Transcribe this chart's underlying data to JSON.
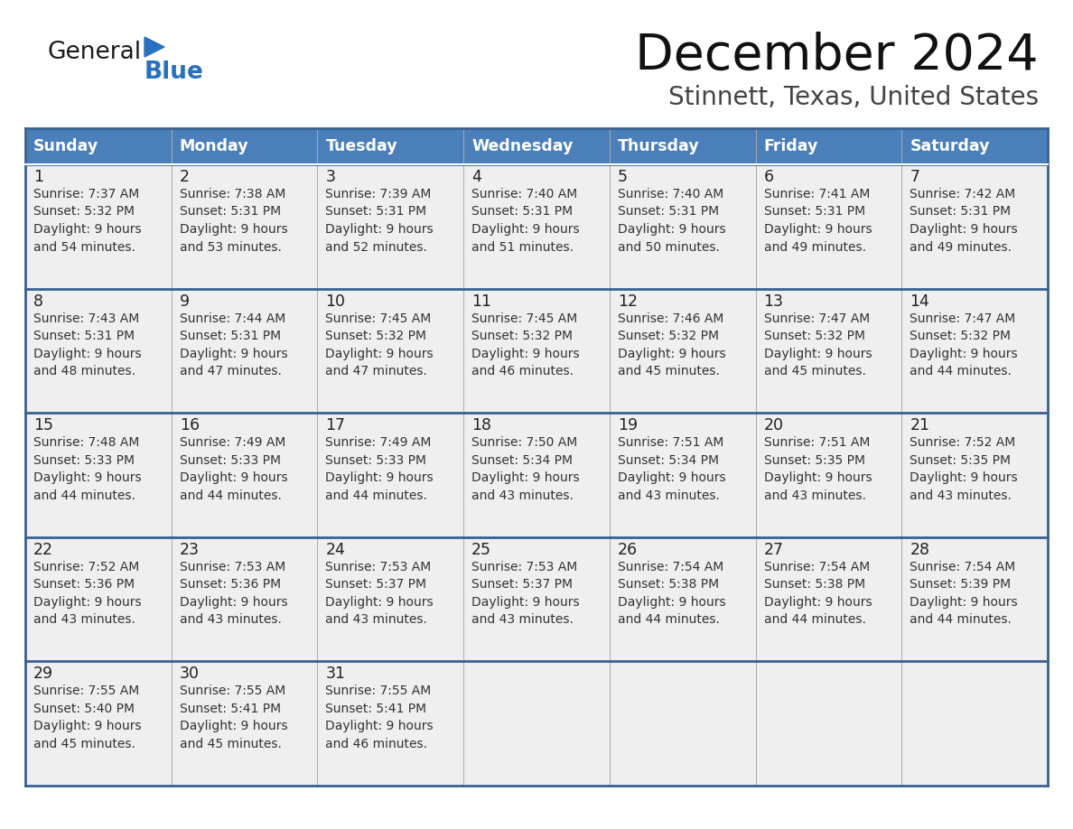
{
  "title": "December 2024",
  "subtitle": "Stinnett, Texas, United States",
  "header_bg": "#4a7fba",
  "header_text_color": "#ffffff",
  "days_of_week": [
    "Sunday",
    "Monday",
    "Tuesday",
    "Wednesday",
    "Thursday",
    "Friday",
    "Saturday"
  ],
  "row_bg": "#efefef",
  "cell_text_color": "#333333",
  "day_num_color": "#222222",
  "border_color": "#3a6090",
  "separator_color": "#3a6090",
  "calendar_data": [
    [
      {
        "day": 1,
        "sunrise": "7:37 AM",
        "sunset": "5:32 PM",
        "daylight_hrs": "9 hours",
        "daylight_min": "and 54 minutes."
      },
      {
        "day": 2,
        "sunrise": "7:38 AM",
        "sunset": "5:31 PM",
        "daylight_hrs": "9 hours",
        "daylight_min": "and 53 minutes."
      },
      {
        "day": 3,
        "sunrise": "7:39 AM",
        "sunset": "5:31 PM",
        "daylight_hrs": "9 hours",
        "daylight_min": "and 52 minutes."
      },
      {
        "day": 4,
        "sunrise": "7:40 AM",
        "sunset": "5:31 PM",
        "daylight_hrs": "9 hours",
        "daylight_min": "and 51 minutes."
      },
      {
        "day": 5,
        "sunrise": "7:40 AM",
        "sunset": "5:31 PM",
        "daylight_hrs": "9 hours",
        "daylight_min": "and 50 minutes."
      },
      {
        "day": 6,
        "sunrise": "7:41 AM",
        "sunset": "5:31 PM",
        "daylight_hrs": "9 hours",
        "daylight_min": "and 49 minutes."
      },
      {
        "day": 7,
        "sunrise": "7:42 AM",
        "sunset": "5:31 PM",
        "daylight_hrs": "9 hours",
        "daylight_min": "and 49 minutes."
      }
    ],
    [
      {
        "day": 8,
        "sunrise": "7:43 AM",
        "sunset": "5:31 PM",
        "daylight_hrs": "9 hours",
        "daylight_min": "and 48 minutes."
      },
      {
        "day": 9,
        "sunrise": "7:44 AM",
        "sunset": "5:31 PM",
        "daylight_hrs": "9 hours",
        "daylight_min": "and 47 minutes."
      },
      {
        "day": 10,
        "sunrise": "7:45 AM",
        "sunset": "5:32 PM",
        "daylight_hrs": "9 hours",
        "daylight_min": "and 47 minutes."
      },
      {
        "day": 11,
        "sunrise": "7:45 AM",
        "sunset": "5:32 PM",
        "daylight_hrs": "9 hours",
        "daylight_min": "and 46 minutes."
      },
      {
        "day": 12,
        "sunrise": "7:46 AM",
        "sunset": "5:32 PM",
        "daylight_hrs": "9 hours",
        "daylight_min": "and 45 minutes."
      },
      {
        "day": 13,
        "sunrise": "7:47 AM",
        "sunset": "5:32 PM",
        "daylight_hrs": "9 hours",
        "daylight_min": "and 45 minutes."
      },
      {
        "day": 14,
        "sunrise": "7:47 AM",
        "sunset": "5:32 PM",
        "daylight_hrs": "9 hours",
        "daylight_min": "and 44 minutes."
      }
    ],
    [
      {
        "day": 15,
        "sunrise": "7:48 AM",
        "sunset": "5:33 PM",
        "daylight_hrs": "9 hours",
        "daylight_min": "and 44 minutes."
      },
      {
        "day": 16,
        "sunrise": "7:49 AM",
        "sunset": "5:33 PM",
        "daylight_hrs": "9 hours",
        "daylight_min": "and 44 minutes."
      },
      {
        "day": 17,
        "sunrise": "7:49 AM",
        "sunset": "5:33 PM",
        "daylight_hrs": "9 hours",
        "daylight_min": "and 44 minutes."
      },
      {
        "day": 18,
        "sunrise": "7:50 AM",
        "sunset": "5:34 PM",
        "daylight_hrs": "9 hours",
        "daylight_min": "and 43 minutes."
      },
      {
        "day": 19,
        "sunrise": "7:51 AM",
        "sunset": "5:34 PM",
        "daylight_hrs": "9 hours",
        "daylight_min": "and 43 minutes."
      },
      {
        "day": 20,
        "sunrise": "7:51 AM",
        "sunset": "5:35 PM",
        "daylight_hrs": "9 hours",
        "daylight_min": "and 43 minutes."
      },
      {
        "day": 21,
        "sunrise": "7:52 AM",
        "sunset": "5:35 PM",
        "daylight_hrs": "9 hours",
        "daylight_min": "and 43 minutes."
      }
    ],
    [
      {
        "day": 22,
        "sunrise": "7:52 AM",
        "sunset": "5:36 PM",
        "daylight_hrs": "9 hours",
        "daylight_min": "and 43 minutes."
      },
      {
        "day": 23,
        "sunrise": "7:53 AM",
        "sunset": "5:36 PM",
        "daylight_hrs": "9 hours",
        "daylight_min": "and 43 minutes."
      },
      {
        "day": 24,
        "sunrise": "7:53 AM",
        "sunset": "5:37 PM",
        "daylight_hrs": "9 hours",
        "daylight_min": "and 43 minutes."
      },
      {
        "day": 25,
        "sunrise": "7:53 AM",
        "sunset": "5:37 PM",
        "daylight_hrs": "9 hours",
        "daylight_min": "and 43 minutes."
      },
      {
        "day": 26,
        "sunrise": "7:54 AM",
        "sunset": "5:38 PM",
        "daylight_hrs": "9 hours",
        "daylight_min": "and 44 minutes."
      },
      {
        "day": 27,
        "sunrise": "7:54 AM",
        "sunset": "5:38 PM",
        "daylight_hrs": "9 hours",
        "daylight_min": "and 44 minutes."
      },
      {
        "day": 28,
        "sunrise": "7:54 AM",
        "sunset": "5:39 PM",
        "daylight_hrs": "9 hours",
        "daylight_min": "and 44 minutes."
      }
    ],
    [
      {
        "day": 29,
        "sunrise": "7:55 AM",
        "sunset": "5:40 PM",
        "daylight_hrs": "9 hours",
        "daylight_min": "and 45 minutes."
      },
      {
        "day": 30,
        "sunrise": "7:55 AM",
        "sunset": "5:41 PM",
        "daylight_hrs": "9 hours",
        "daylight_min": "and 45 minutes."
      },
      {
        "day": 31,
        "sunrise": "7:55 AM",
        "sunset": "5:41 PM",
        "daylight_hrs": "9 hours",
        "daylight_min": "and 46 minutes."
      },
      null,
      null,
      null,
      null
    ]
  ],
  "logo_text_general": "General",
  "logo_text_blue": "Blue",
  "logo_general_color": "#1a1a1a",
  "logo_blue_color": "#2970c0",
  "logo_triangle_color": "#2970c0",
  "fig_width": 11.88,
  "fig_height": 9.18,
  "dpi": 100
}
